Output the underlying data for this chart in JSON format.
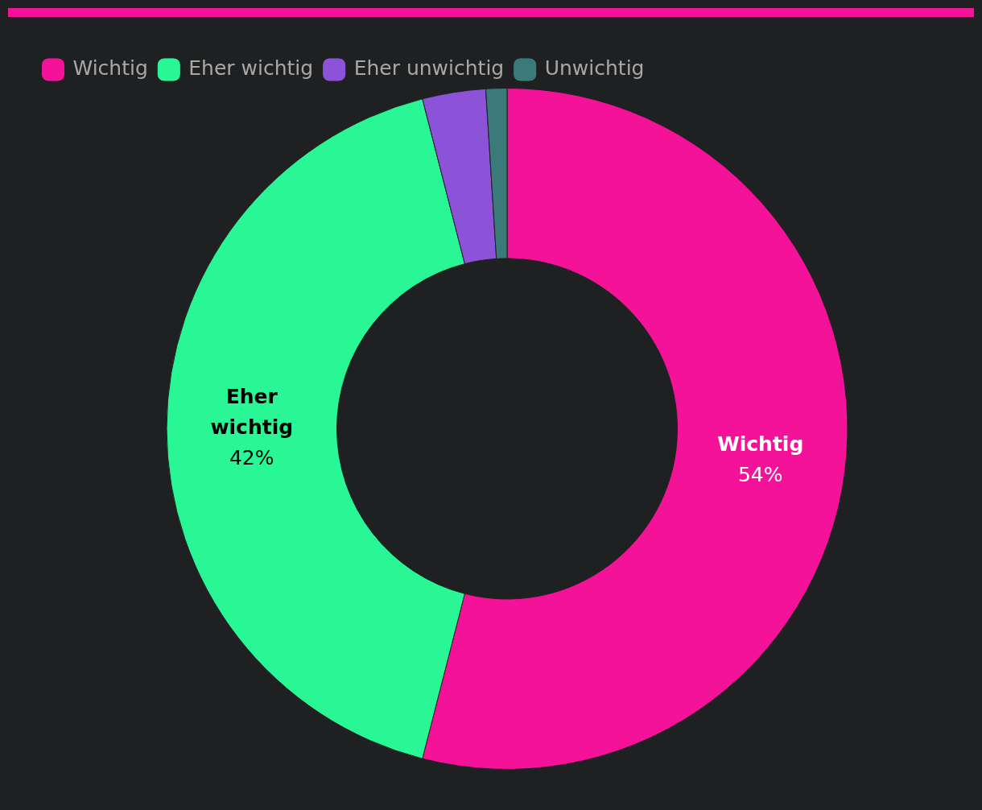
{
  "chart_data": {
    "type": "donut",
    "categories": [
      "Wichtig",
      "Eher wichtig",
      "Eher unwichtig",
      "Unwichtig"
    ],
    "values": [
      54,
      42,
      3,
      1
    ],
    "colors": [
      "#f41299",
      "#29f795",
      "#8c52d8",
      "#3a7a78"
    ],
    "value_labels": [
      "54%",
      "42%",
      null,
      null
    ],
    "legend": "top left"
  }
}
